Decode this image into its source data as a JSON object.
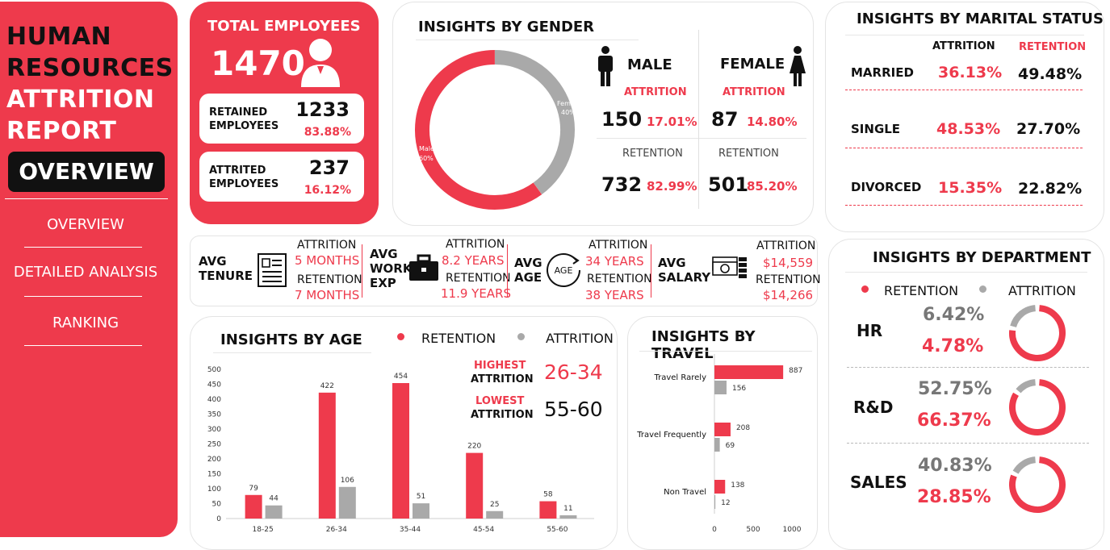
{
  "sidebar": {
    "title_lines": [
      "HUMAN",
      "RESOURCES",
      "ATTRITION",
      "REPORT"
    ],
    "active_badge": "OVERVIEW",
    "nav": [
      "OVERVIEW",
      "DETAILED ANALYSIS",
      "RANKING"
    ]
  },
  "total": {
    "label": "TOTAL EMPLOYEES",
    "value": "1470",
    "retained_label_1": "RETAINED",
    "retained_label_2": "EMPLOYEES",
    "retained_value": "1233",
    "retained_pct": "83.88%",
    "attrited_label_1": "ATTRITED",
    "attrited_label_2": "EMPLOYEES",
    "attrited_value": "237",
    "attrited_pct": "16.12%"
  },
  "gender": {
    "title": "INSIGHTS BY GENDER",
    "donut_female_label": "Female",
    "donut_female_pct": "40%",
    "donut_male_label": "Male",
    "donut_male_pct": "60%",
    "male": {
      "label": "MALE",
      "attrition_label": "ATTRITION",
      "attrition_n": "150",
      "attrition_pct": "17.01%",
      "retention_label": "RETENTION",
      "retention_n": "732",
      "retention_pct": "82.99%"
    },
    "female": {
      "label": "FEMALE",
      "attrition_label": "ATTRITION",
      "attrition_n": "87",
      "attrition_pct": "14.80%",
      "retention_label": "RETENTION",
      "retention_n": "501",
      "retention_pct": "85.20%"
    }
  },
  "marital": {
    "title": "INSIGHTS BY MARITAL STATUS",
    "col_attrition": "ATTRITION",
    "col_retention": "RETENTION",
    "rows": [
      {
        "label": "MARRIED",
        "attrition": "36.13%",
        "retention": "49.48%"
      },
      {
        "label": "SINGLE",
        "attrition": "48.53%",
        "retention": "27.70%"
      },
      {
        "label": "DIVORCED",
        "attrition": "15.35%",
        "retention": "22.82%"
      }
    ]
  },
  "averages": {
    "tenure": {
      "label1": "AVG",
      "label2": "TENURE",
      "attrition_label": "ATTRITION",
      "attrition": "5 MONTHS",
      "retention_label": "RETENTION",
      "retention": "7 MONTHS"
    },
    "workexp": {
      "label1": "AVG",
      "label2": "WORK",
      "label3": "EXP",
      "attrition_label": "ATTRITION",
      "attrition": "8.2 YEARS",
      "retention_label": "RETENTION",
      "retention": "11.9 YEARS"
    },
    "age": {
      "label1": "AVG",
      "label2": "AGE",
      "icon_text": "AGE",
      "attrition_label": "ATTRITION",
      "attrition": "34 YEARS",
      "retention_label": "RETENTION",
      "retention": "38 YEARS"
    },
    "salary": {
      "label1": "AVG",
      "label2": "SALARY",
      "attrition_label": "ATTRITION",
      "attrition": "$14,559",
      "retention_label": "RETENTION",
      "retention": "$14,266"
    }
  },
  "age": {
    "title": "INSIGHTS BY AGE",
    "legend_retention": "RETENTION",
    "legend_attrition": "ATTRITION",
    "highest_label_1": "HIGHEST",
    "highest_label_2": "ATTRITION",
    "highest_value": "26-34",
    "lowest_label_1": "LOWEST",
    "lowest_label_2": "ATTRITION",
    "lowest_value": "55-60"
  },
  "travel": {
    "title": "INSIGHTS BY TRAVEL"
  },
  "department": {
    "title": "INSIGHTS BY DEPARTMENT",
    "legend_retention": "RETENTION",
    "legend_attrition": "ATTRITION",
    "rows": [
      {
        "label": "HR",
        "top": "6.42%",
        "bottom": "4.78%",
        "ring_fraction": 0.78
      },
      {
        "label": "R&D",
        "top": "52.75%",
        "bottom": "66.37%",
        "ring_fraction": 0.85
      },
      {
        "label": "SALES",
        "top": "40.83%",
        "bottom": "28.85%",
        "ring_fraction": 0.82
      }
    ]
  },
  "colors": {
    "accent": "#ee3a4c",
    "grey": "#a9a9a9",
    "dark": "#111111"
  },
  "chart_data": [
    {
      "type": "bar",
      "title": "INSIGHTS BY AGE",
      "categories": [
        "18-25",
        "26-34",
        "35-44",
        "45-54",
        "55-60"
      ],
      "series": [
        {
          "name": "RETENTION",
          "values": [
            79,
            422,
            454,
            220,
            58
          ]
        },
        {
          "name": "ATTRITION",
          "values": [
            44,
            106,
            51,
            25,
            11
          ]
        }
      ],
      "yticks": [
        "0",
        "50",
        "100",
        "150",
        "200",
        "250",
        "300",
        "350",
        "400",
        "450",
        "500"
      ],
      "ylim": [
        0,
        500
      ]
    },
    {
      "type": "bar",
      "orientation": "horizontal",
      "title": "INSIGHTS BY TRAVEL",
      "categories": [
        "Travel Rarely",
        "Travel Frequently",
        "Non Travel"
      ],
      "series": [
        {
          "values": [
            887,
            208,
            138
          ]
        },
        {
          "values": [
            156,
            69,
            12
          ]
        }
      ],
      "xticks": [
        "0",
        "500",
        "1000"
      ],
      "xlim": [
        0,
        1000
      ]
    },
    {
      "type": "pie",
      "title": "INSIGHTS BY GENDER",
      "categories": [
        "Female",
        "Male"
      ],
      "values": [
        40,
        60
      ]
    }
  ]
}
